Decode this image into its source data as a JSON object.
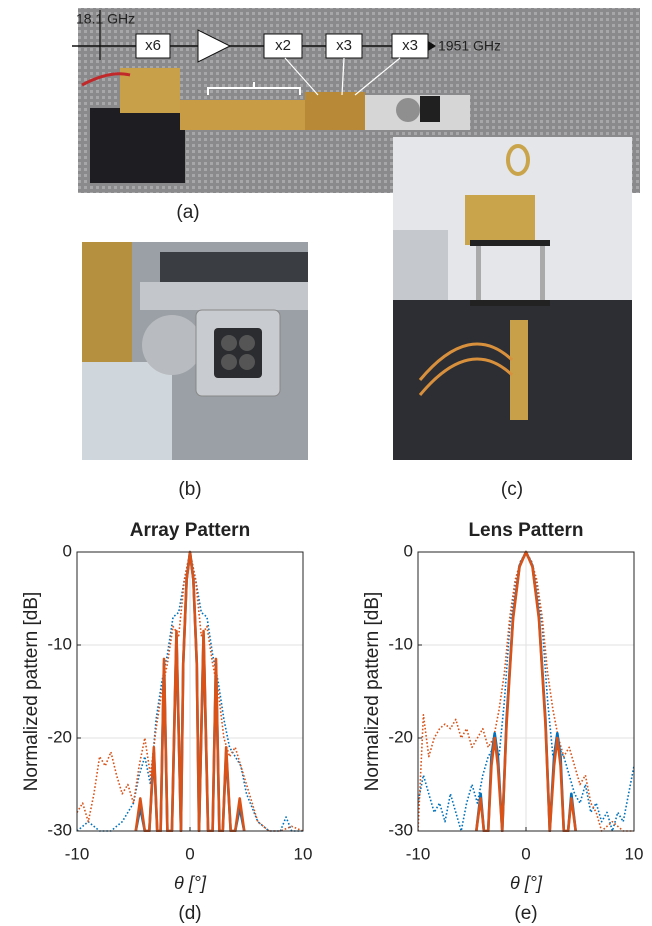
{
  "photos": {
    "a": {
      "input_label": "18.1 GHz",
      "blocks": [
        "x6",
        "x2",
        "x3",
        "x3"
      ],
      "output_label": "1951 GHz",
      "caption": "(a)"
    },
    "b": {
      "caption": "(b)"
    },
    "c": {
      "caption": "(c)"
    }
  },
  "chart_data": [
    {
      "type": "line",
      "title": "Array Pattern",
      "x_label": "θ [°]",
      "y_label": "Normalized pattern [dB]",
      "caption": "(d)",
      "xlim": [
        -10,
        10
      ],
      "xticks": [
        -10,
        0,
        10
      ],
      "ylim": [
        -30,
        0
      ],
      "yticks": [
        -30,
        -20,
        -10,
        0
      ],
      "grid": true,
      "series": [
        {
          "color": "#0072bd",
          "style": "dotted",
          "x": [
            -10,
            -9,
            -8,
            -7,
            -6,
            -5,
            -4.5,
            -4,
            -3.5,
            -3,
            -2.5,
            -2,
            -1.5,
            -1,
            -0.5,
            0,
            0.5,
            1,
            1.5,
            2,
            2.5,
            3,
            3.5,
            4,
            4.5,
            5,
            6,
            7,
            8,
            8.5,
            9,
            10
          ],
          "values": [
            -30,
            -29,
            -30,
            -30,
            -29,
            -27,
            -24,
            -22,
            -25,
            -18,
            -14,
            -11,
            -7,
            -6.5,
            -3,
            0,
            -3,
            -6.5,
            -7,
            -11,
            -14,
            -18,
            -21,
            -22,
            -23,
            -26,
            -29,
            -30,
            -30,
            -28.5,
            -30,
            -30
          ]
        },
        {
          "color": "#d95319",
          "style": "dotted",
          "x": [
            -10,
            -9.5,
            -9,
            -8.5,
            -8,
            -7.5,
            -7,
            -6.5,
            -6,
            -5.5,
            -5,
            -4.5,
            -4,
            -3.5,
            -3,
            -2.5,
            -2,
            -1.5,
            -1,
            -0.5,
            0,
            0.5,
            1,
            1.5,
            2,
            2.5,
            3,
            3.5,
            4,
            4.5,
            5,
            5.5,
            6,
            7,
            8,
            9,
            10
          ],
          "values": [
            -28,
            -27,
            -29,
            -26,
            -22,
            -23,
            -21.5,
            -24,
            -26,
            -25,
            -27,
            -23,
            -20,
            -24,
            -19,
            -15,
            -12,
            -8,
            -9,
            -3,
            0,
            -3,
            -9,
            -8,
            -12,
            -15,
            -20,
            -22,
            -21,
            -23,
            -25,
            -27,
            -29,
            -30,
            -30,
            -29.5,
            -30
          ]
        },
        {
          "color": "#0072bd",
          "style": "solid",
          "x": [
            -4.8,
            -4.4,
            -4.0,
            -3.6,
            -3.2,
            -2.9,
            -2.6,
            -2.3,
            -2.0,
            -1.6,
            -1.2,
            -0.8,
            -0.6,
            -0.3,
            0,
            0.3,
            0.6,
            0.8,
            1.2,
            1.6,
            2.0,
            2.3,
            2.6,
            2.9,
            3.2,
            3.6,
            4.0,
            4.4,
            4.8
          ],
          "values": [
            -30,
            -27.5,
            -30,
            -30,
            -21.5,
            -30,
            -30,
            -12,
            -30,
            -30,
            -9,
            -30,
            -12,
            -3,
            0,
            -3,
            -12,
            -30,
            -9,
            -30,
            -30,
            -12,
            -30,
            -30,
            -21.5,
            -30,
            -30,
            -27.5,
            -30
          ]
        },
        {
          "color": "#d95319",
          "style": "solid",
          "x": [
            -4.8,
            -4.4,
            -4.0,
            -3.6,
            -3.2,
            -2.9,
            -2.6,
            -2.3,
            -2.0,
            -1.6,
            -1.2,
            -0.8,
            -0.6,
            -0.3,
            0,
            0.3,
            0.6,
            0.8,
            1.2,
            1.6,
            2.0,
            2.3,
            2.6,
            2.9,
            3.2,
            3.6,
            4.0,
            4.4,
            4.8
          ],
          "values": [
            -30,
            -26.5,
            -30,
            -30,
            -21,
            -30,
            -30,
            -11.5,
            -30,
            -30,
            -8.5,
            -30,
            -12,
            -3,
            0,
            -3,
            -12,
            -30,
            -8.5,
            -30,
            -30,
            -11.5,
            -30,
            -30,
            -21,
            -30,
            -30,
            -26.5,
            -30
          ]
        }
      ]
    },
    {
      "type": "line",
      "title": "Lens Pattern",
      "x_label": "θ [°]",
      "y_label": "Normalized pattern [dB]",
      "caption": "(e)",
      "xlim": [
        -10,
        10
      ],
      "xticks": [
        -10,
        0,
        10
      ],
      "ylim": [
        -30,
        0
      ],
      "yticks": [
        -30,
        -20,
        -10,
        0
      ],
      "grid": true,
      "series": [
        {
          "color": "#0072bd",
          "style": "dotted",
          "x": [
            -10,
            -9.5,
            -9,
            -8.5,
            -8,
            -7.5,
            -7,
            -6.5,
            -6,
            -5.5,
            -5,
            -4.5,
            -4,
            -3.5,
            -3,
            -2.5,
            -2,
            -1.5,
            -1,
            -0.5,
            0,
            0.5,
            1,
            1.5,
            2,
            2.5,
            3,
            3.5,
            4,
            4.5,
            5,
            5.5,
            6,
            6.5,
            7,
            7.5,
            8,
            8.5,
            9,
            9.5,
            10
          ],
          "values": [
            -27,
            -24,
            -26,
            -28,
            -27,
            -29,
            -26,
            -28,
            -30,
            -27,
            -25,
            -27,
            -24,
            -22,
            -21,
            -22,
            -16,
            -8,
            -3.5,
            -1,
            0,
            -1,
            -3.5,
            -8,
            -16,
            -22,
            -21,
            -22,
            -24,
            -26,
            -27,
            -25,
            -28,
            -27,
            -29,
            -28,
            -30,
            -28,
            -29,
            -26,
            -23
          ]
        },
        {
          "color": "#d95319",
          "style": "dotted",
          "x": [
            -10,
            -9.5,
            -9,
            -8.5,
            -8,
            -7.5,
            -7,
            -6.5,
            -6,
            -5.5,
            -5,
            -4.5,
            -4,
            -3.5,
            -3,
            -2.5,
            -2,
            -1.5,
            -1,
            -0.5,
            0,
            0.5,
            1,
            1.5,
            2,
            2.5,
            3,
            3.5,
            4,
            4.5,
            5,
            5.5,
            6,
            6.5,
            7,
            8,
            9,
            10
          ],
          "values": [
            -30,
            -17.5,
            -22,
            -20,
            -19,
            -18.5,
            -19,
            -18,
            -20,
            -19,
            -21,
            -20,
            -19,
            -21,
            -20,
            -17,
            -13,
            -7,
            -3,
            -1,
            0,
            -1,
            -3,
            -7,
            -13,
            -17,
            -20,
            -22,
            -21,
            -23,
            -25,
            -24,
            -27,
            -28,
            -30,
            -29,
            -30,
            -30
          ]
        },
        {
          "color": "#0072bd",
          "style": "solid",
          "x": [
            -4.6,
            -4.2,
            -3.9,
            -3.5,
            -3.2,
            -2.9,
            -2.6,
            -2.2,
            -1.8,
            -1.2,
            -0.6,
            0,
            0.6,
            1.2,
            1.8,
            2.2,
            2.6,
            2.9,
            3.2,
            3.5,
            3.9,
            4.2,
            4.6
          ],
          "values": [
            -30,
            -26,
            -30,
            -30,
            -22,
            -19.5,
            -22,
            -30,
            -18,
            -7,
            -1.5,
            0,
            -1.5,
            -7,
            -18,
            -30,
            -22,
            -19.5,
            -22,
            -30,
            -30,
            -26,
            -30
          ]
        },
        {
          "color": "#d95319",
          "style": "solid",
          "x": [
            -4.6,
            -4.2,
            -3.9,
            -3.5,
            -3.2,
            -2.9,
            -2.6,
            -2.2,
            -1.8,
            -1.2,
            -0.6,
            0,
            0.6,
            1.2,
            1.8,
            2.2,
            2.6,
            2.9,
            3.2,
            3.5,
            3.9,
            4.2,
            4.6
          ],
          "values": [
            -30,
            -26.5,
            -30,
            -30,
            -23,
            -20,
            -23,
            -30,
            -18.5,
            -7.2,
            -1.6,
            0,
            -1.6,
            -7.2,
            -18.5,
            -30,
            -23,
            -20,
            -23,
            -30,
            -30,
            -26.5,
            -30
          ]
        }
      ]
    }
  ]
}
